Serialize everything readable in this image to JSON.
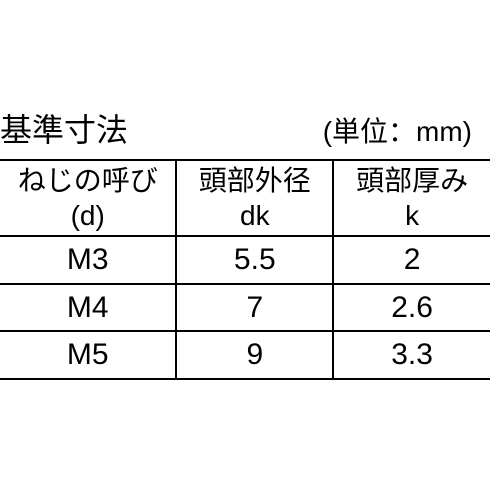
{
  "title": "基準寸法",
  "unit_label": "(単位：mm)",
  "table": {
    "columns": [
      {
        "line1": "ねじの呼び",
        "line2": "(d)"
      },
      {
        "line1": "頭部外径",
        "line2": "dk"
      },
      {
        "line1": "頭部厚み",
        "line2": "k"
      }
    ],
    "rows": [
      [
        "M3",
        "5.5",
        "2"
      ],
      [
        "M4",
        "7",
        "2.6"
      ],
      [
        "M5",
        "9",
        "3.3"
      ]
    ],
    "border_color": "#000000",
    "text_color": "#000000",
    "background_color": "#ffffff",
    "header_fontsize": 28,
    "cell_fontsize": 30,
    "title_fontsize": 32
  }
}
